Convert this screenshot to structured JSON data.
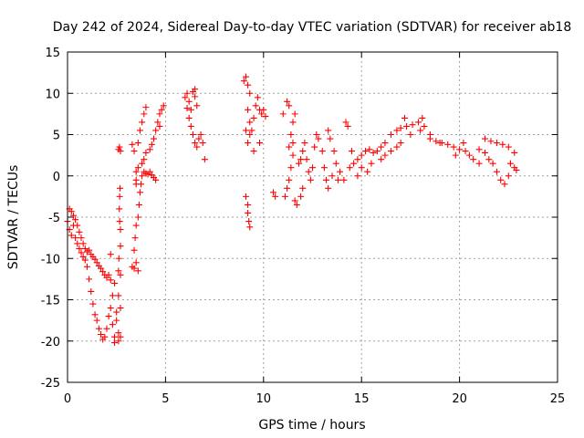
{
  "chart_data": {
    "type": "scatter",
    "title": "Day 242 of 2024, Sidereal Day-to-day VTEC variation (SDTVAR) for receiver ab18",
    "xlabel": "GPS time / hours",
    "ylabel": "SDTVAR / TECUs",
    "xlim": [
      0,
      25
    ],
    "ylim": [
      -25,
      15
    ],
    "xticks": [
      0,
      5,
      10,
      15,
      20,
      25
    ],
    "yticks": [
      -25,
      -20,
      -15,
      -10,
      -5,
      0,
      5,
      10,
      15
    ],
    "xtick_labels": [
      "0",
      "5",
      "10",
      "15",
      "20",
      "25"
    ],
    "ytick_labels": [
      "-25",
      "-20",
      "-15",
      "-10",
      "-5",
      "0",
      "5",
      "10",
      "15"
    ],
    "grid": true,
    "marker": "+",
    "series": [
      {
        "name": "SDTVAR",
        "color": "#ff0000",
        "points": [
          [
            0.0,
            -5.5
          ],
          [
            0.1,
            -6.5
          ],
          [
            0.2,
            -7.2
          ],
          [
            0.3,
            -6.0
          ],
          [
            0.4,
            -7.5
          ],
          [
            0.5,
            -8.2
          ],
          [
            0.6,
            -8.8
          ],
          [
            0.7,
            -9.3
          ],
          [
            0.8,
            -9.8
          ],
          [
            0.9,
            -10.2
          ],
          [
            0.1,
            -4.0
          ],
          [
            0.2,
            -4.3
          ],
          [
            0.3,
            -4.8
          ],
          [
            0.4,
            -5.3
          ],
          [
            0.5,
            -6.0
          ],
          [
            0.6,
            -6.8
          ],
          [
            0.7,
            -7.5
          ],
          [
            0.8,
            -8.2
          ],
          [
            0.9,
            -8.8
          ],
          [
            1.0,
            -9.2
          ],
          [
            1.1,
            -9.0
          ],
          [
            1.2,
            -9.5
          ],
          [
            1.3,
            -9.8
          ],
          [
            1.4,
            -10.1
          ],
          [
            1.5,
            -10.5
          ],
          [
            1.6,
            -10.9
          ],
          [
            1.7,
            -11.2
          ],
          [
            1.8,
            -11.6
          ],
          [
            1.9,
            -12.0
          ],
          [
            2.0,
            -12.3
          ],
          [
            2.1,
            -12.0
          ],
          [
            2.2,
            -12.6
          ],
          [
            1.0,
            -11.0
          ],
          [
            1.1,
            -12.5
          ],
          [
            1.2,
            -14.0
          ],
          [
            1.3,
            -15.5
          ],
          [
            1.4,
            -16.8
          ],
          [
            1.5,
            -17.5
          ],
          [
            1.6,
            -18.5
          ],
          [
            1.7,
            -19.2
          ],
          [
            1.8,
            -19.8
          ],
          [
            1.9,
            -19.5
          ],
          [
            2.0,
            -18.5
          ],
          [
            2.1,
            -17.0
          ],
          [
            2.2,
            -16.0
          ],
          [
            2.3,
            -14.5
          ],
          [
            2.4,
            -13.0
          ],
          [
            2.5,
            -17.5
          ],
          [
            2.6,
            -19.0
          ],
          [
            2.4,
            -19.5
          ],
          [
            2.3,
            -18.0
          ],
          [
            2.5,
            -16.5
          ],
          [
            2.2,
            -9.5
          ],
          [
            2.6,
            -14.5
          ],
          [
            2.7,
            -16.0
          ],
          [
            2.7,
            -12.0
          ],
          [
            2.6,
            -11.5
          ],
          [
            2.4,
            -20.2
          ],
          [
            2.6,
            -20.0
          ],
          [
            2.7,
            -19.5
          ],
          [
            2.6,
            3.2
          ],
          [
            2.65,
            3.5
          ],
          [
            2.7,
            3.0
          ],
          [
            2.68,
            -1.5
          ],
          [
            2.66,
            -2.5
          ],
          [
            2.64,
            -4.0
          ],
          [
            2.66,
            -5.5
          ],
          [
            2.7,
            -6.5
          ],
          [
            2.7,
            -8.5
          ],
          [
            2.62,
            -10.0
          ],
          [
            3.3,
            -11.0
          ],
          [
            3.4,
            -11.2
          ],
          [
            3.5,
            -10.5
          ],
          [
            3.6,
            -11.5
          ],
          [
            3.4,
            -9.0
          ],
          [
            3.45,
            -7.5
          ],
          [
            3.5,
            -6.0
          ],
          [
            3.6,
            -5.0
          ],
          [
            3.65,
            -3.5
          ],
          [
            3.7,
            -2.0
          ],
          [
            3.75,
            -1.0
          ],
          [
            3.8,
            0.0
          ],
          [
            3.9,
            0.5
          ],
          [
            4.0,
            0.3
          ],
          [
            4.1,
            0.2
          ],
          [
            4.2,
            0.5
          ],
          [
            4.3,
            0.1
          ],
          [
            4.4,
            -0.2
          ],
          [
            4.5,
            -0.5
          ],
          [
            3.5,
            -1.0
          ],
          [
            3.5,
            -0.5
          ],
          [
            3.5,
            0.5
          ],
          [
            3.6,
            1.0
          ],
          [
            3.8,
            1.5
          ],
          [
            3.9,
            2.0
          ],
          [
            4.0,
            2.8
          ],
          [
            4.2,
            3.2
          ],
          [
            4.3,
            3.8
          ],
          [
            4.4,
            4.5
          ],
          [
            3.3,
            3.8
          ],
          [
            3.6,
            4.0
          ],
          [
            3.7,
            5.5
          ],
          [
            3.8,
            6.5
          ],
          [
            3.9,
            7.5
          ],
          [
            4.0,
            8.3
          ],
          [
            3.4,
            3.0
          ],
          [
            4.5,
            5.5
          ],
          [
            4.6,
            6.5
          ],
          [
            4.7,
            7.5
          ],
          [
            4.8,
            8.0
          ],
          [
            4.9,
            8.5
          ],
          [
            4.7,
            6.0
          ],
          [
            6.0,
            9.5
          ],
          [
            6.1,
            10.0
          ],
          [
            6.2,
            9.0
          ],
          [
            6.3,
            8.0
          ],
          [
            6.4,
            10.2
          ],
          [
            6.5,
            9.6
          ],
          [
            6.6,
            8.5
          ],
          [
            6.2,
            7.0
          ],
          [
            6.3,
            6.0
          ],
          [
            6.4,
            5.0
          ],
          [
            6.5,
            4.0
          ],
          [
            6.6,
            3.5
          ],
          [
            6.7,
            4.5
          ],
          [
            6.8,
            5.0
          ],
          [
            6.9,
            4.0
          ],
          [
            7.0,
            2.0
          ],
          [
            6.1,
            8.2
          ],
          [
            6.5,
            10.5
          ],
          [
            9.0,
            11.5
          ],
          [
            9.1,
            12.0
          ],
          [
            9.2,
            11.0
          ],
          [
            9.3,
            10.0
          ],
          [
            9.2,
            8.0
          ],
          [
            9.3,
            6.5
          ],
          [
            9.4,
            5.5
          ],
          [
            9.5,
            7.0
          ],
          [
            9.6,
            8.5
          ],
          [
            9.7,
            9.5
          ],
          [
            9.8,
            8.0
          ],
          [
            9.9,
            7.5
          ],
          [
            10.0,
            8.0
          ],
          [
            10.1,
            7.2
          ],
          [
            9.1,
            5.5
          ],
          [
            9.2,
            4.0
          ],
          [
            9.3,
            5.0
          ],
          [
            9.5,
            3.0
          ],
          [
            9.8,
            4.0
          ],
          [
            9.1,
            -2.5
          ],
          [
            9.2,
            -3.5
          ],
          [
            9.2,
            -4.5
          ],
          [
            9.25,
            -5.5
          ],
          [
            9.3,
            -6.2
          ],
          [
            10.5,
            -2.0
          ],
          [
            10.6,
            -2.5
          ],
          [
            11.0,
            7.5
          ],
          [
            11.2,
            9.0
          ],
          [
            11.3,
            8.5
          ],
          [
            11.5,
            6.5
          ],
          [
            11.6,
            7.5
          ],
          [
            11.4,
            5.0
          ],
          [
            11.5,
            4.0
          ],
          [
            11.3,
            3.5
          ],
          [
            11.5,
            2.5
          ],
          [
            11.4,
            1.0
          ],
          [
            11.3,
            -0.5
          ],
          [
            11.2,
            -1.5
          ],
          [
            11.1,
            -2.5
          ],
          [
            11.6,
            -3.0
          ],
          [
            11.7,
            -3.5
          ],
          [
            11.8,
            1.5
          ],
          [
            11.9,
            2.0
          ],
          [
            12.0,
            3.0
          ],
          [
            12.1,
            4.0
          ],
          [
            12.2,
            2.0
          ],
          [
            12.3,
            0.5
          ],
          [
            12.4,
            -0.5
          ],
          [
            12.5,
            1.0
          ],
          [
            12.6,
            3.5
          ],
          [
            12.7,
            5.0
          ],
          [
            12.8,
            4.5
          ],
          [
            13.0,
            3.0
          ],
          [
            13.1,
            1.0
          ],
          [
            13.2,
            -0.5
          ],
          [
            13.3,
            -1.5
          ],
          [
            13.5,
            0.0
          ],
          [
            13.7,
            1.5
          ],
          [
            13.9,
            0.5
          ],
          [
            14.1,
            -0.5
          ],
          [
            14.2,
            6.5
          ],
          [
            14.3,
            6.0
          ],
          [
            13.3,
            5.5
          ],
          [
            13.4,
            4.5
          ],
          [
            13.6,
            3.0
          ],
          [
            14.4,
            1.0
          ],
          [
            14.6,
            1.5
          ],
          [
            14.8,
            2.0
          ],
          [
            15.0,
            2.5
          ],
          [
            15.2,
            3.0
          ],
          [
            15.4,
            3.2
          ],
          [
            15.6,
            2.8
          ],
          [
            15.8,
            3.0
          ],
          [
            16.0,
            3.5
          ],
          [
            16.2,
            4.0
          ],
          [
            16.5,
            5.0
          ],
          [
            16.8,
            5.5
          ],
          [
            17.0,
            5.8
          ],
          [
            17.3,
            6.0
          ],
          [
            17.6,
            6.2
          ],
          [
            17.9,
            6.5
          ],
          [
            18.2,
            6.0
          ],
          [
            18.5,
            5.0
          ],
          [
            18.8,
            4.2
          ],
          [
            19.1,
            4.0
          ],
          [
            19.4,
            3.8
          ],
          [
            19.7,
            3.5
          ],
          [
            20.0,
            3.2
          ],
          [
            20.3,
            3.0
          ],
          [
            20.5,
            2.5
          ],
          [
            20.7,
            2.0
          ],
          [
            21.0,
            3.2
          ],
          [
            21.3,
            2.8
          ],
          [
            21.5,
            2.0
          ],
          [
            21.7,
            1.5
          ],
          [
            21.9,
            0.5
          ],
          [
            22.1,
            -0.5
          ],
          [
            22.3,
            -1.0
          ],
          [
            22.5,
            0.0
          ],
          [
            21.3,
            4.5
          ],
          [
            21.6,
            4.2
          ],
          [
            21.9,
            4.0
          ],
          [
            22.2,
            3.8
          ],
          [
            22.5,
            3.5
          ],
          [
            22.8,
            2.8
          ],
          [
            22.6,
            1.5
          ],
          [
            22.8,
            1.0
          ],
          [
            22.9,
            0.7
          ],
          [
            16.0,
            2.0
          ],
          [
            16.5,
            3.0
          ],
          [
            17.0,
            4.0
          ],
          [
            17.5,
            5.0
          ],
          [
            18.0,
            5.5
          ],
          [
            18.5,
            4.5
          ],
          [
            19.0,
            4.0
          ],
          [
            15.0,
            1.0
          ],
          [
            15.5,
            1.5
          ],
          [
            16.2,
            2.5
          ],
          [
            14.8,
            0.0
          ],
          [
            15.3,
            0.5
          ],
          [
            17.2,
            7.0
          ],
          [
            18.1,
            7.0
          ],
          [
            20.2,
            4.0
          ],
          [
            19.8,
            2.5
          ],
          [
            21.0,
            1.5
          ],
          [
            12.0,
            -1.5
          ],
          [
            11.9,
            -2.5
          ],
          [
            13.8,
            -0.5
          ],
          [
            14.5,
            3.0
          ],
          [
            16.8,
            3.5
          ]
        ]
      }
    ]
  }
}
